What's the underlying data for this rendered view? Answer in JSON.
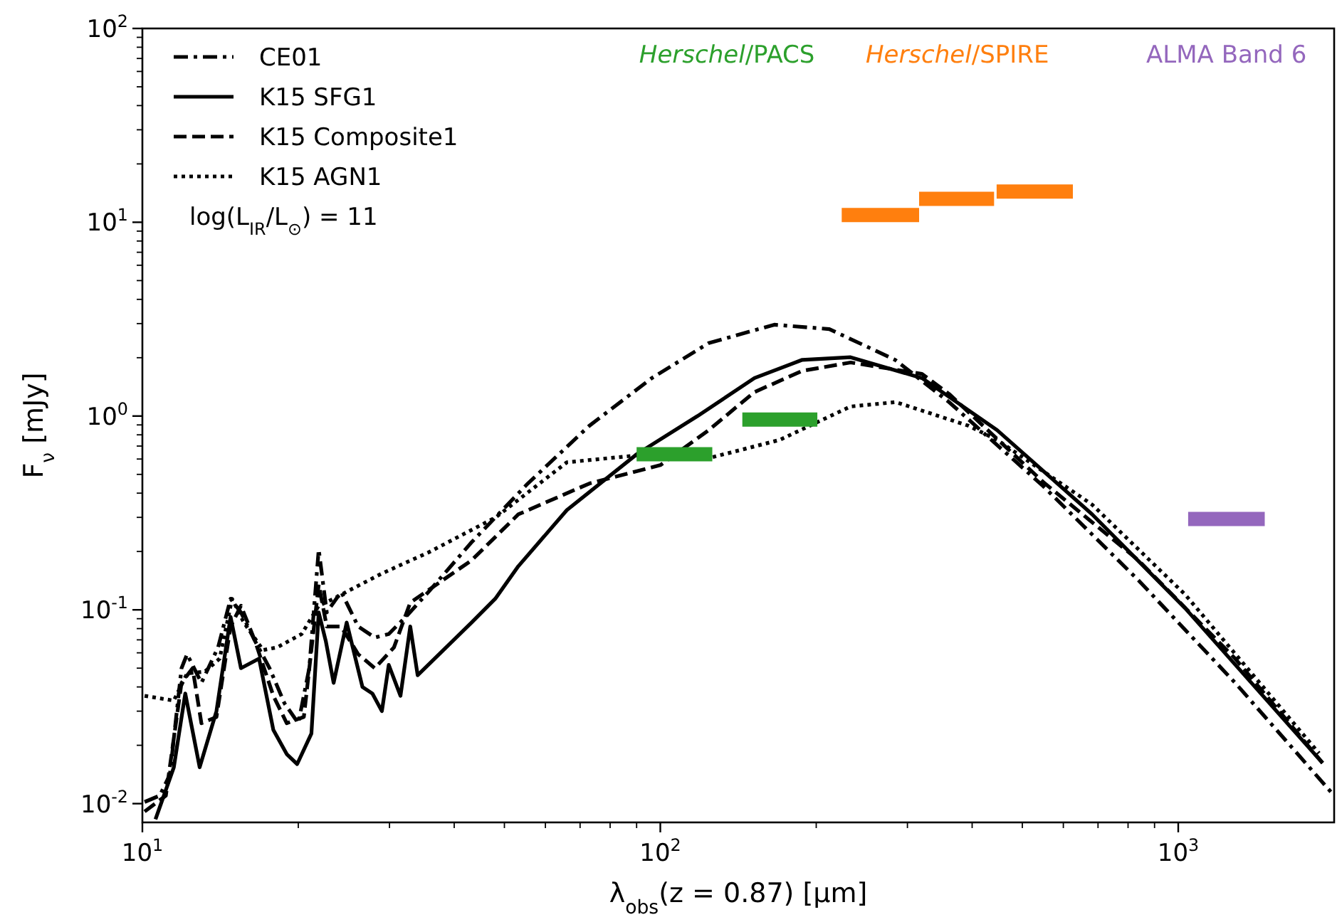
{
  "chart_data": {
    "type": "line",
    "xlabel": "λ$_{obs}$(z = 0.87) [μm]",
    "ylabel": "F$_{ν}$ [mJy]",
    "log": "xy",
    "legend": "top left",
    "grid": false,
    "xlim": [
      10,
      2000
    ],
    "ylim": [
      0.008,
      100
    ],
    "xticks": [
      {
        "value": 10,
        "label": "10$^{1}$"
      },
      {
        "value": 20,
        "label": null
      },
      {
        "value": 30,
        "label": null
      },
      {
        "value": 40,
        "label": null
      },
      {
        "value": 50,
        "label": null
      },
      {
        "value": 60,
        "label": null
      },
      {
        "value": 70,
        "label": null
      },
      {
        "value": 80,
        "label": null
      },
      {
        "value": 90,
        "label": null
      },
      {
        "value": 100,
        "label": "10$^{2}$"
      },
      {
        "value": 200,
        "label": null
      },
      {
        "value": 300,
        "label": null
      },
      {
        "value": 400,
        "label": null
      },
      {
        "value": 500,
        "label": null
      },
      {
        "value": 600,
        "label": null
      },
      {
        "value": 700,
        "label": null
      },
      {
        "value": 800,
        "label": null
      },
      {
        "value": 900,
        "label": null
      },
      {
        "value": 1000,
        "label": "10$^{3}$"
      }
    ],
    "yticks": [
      {
        "value": 0.01,
        "label": "10$^{-2}$"
      },
      {
        "value": 0.02,
        "label": null
      },
      {
        "value": 0.03,
        "label": null
      },
      {
        "value": 0.04,
        "label": null
      },
      {
        "value": 0.05,
        "label": null
      },
      {
        "value": 0.06,
        "label": null
      },
      {
        "value": 0.07,
        "label": null
      },
      {
        "value": 0.08,
        "label": null
      },
      {
        "value": 0.09,
        "label": null
      },
      {
        "value": 0.1,
        "label": "10$^{-1}$"
      },
      {
        "value": 0.2,
        "label": null
      },
      {
        "value": 0.3,
        "label": null
      },
      {
        "value": 0.4,
        "label": null
      },
      {
        "value": 0.5,
        "label": null
      },
      {
        "value": 0.6,
        "label": null
      },
      {
        "value": 0.7,
        "label": null
      },
      {
        "value": 0.8,
        "label": null
      },
      {
        "value": 0.9,
        "label": null
      },
      {
        "value": 1,
        "label": "10$^{0}$"
      },
      {
        "value": 2,
        "label": null
      },
      {
        "value": 3,
        "label": null
      },
      {
        "value": 4,
        "label": null
      },
      {
        "value": 5,
        "label": null
      },
      {
        "value": 6,
        "label": null
      },
      {
        "value": 7,
        "label": null
      },
      {
        "value": 8,
        "label": null
      },
      {
        "value": 9,
        "label": null
      },
      {
        "value": 10,
        "label": "10$^{1}$"
      },
      {
        "value": 20,
        "label": null
      },
      {
        "value": 30,
        "label": null
      },
      {
        "value": 40,
        "label": null
      },
      {
        "value": 50,
        "label": null
      },
      {
        "value": 60,
        "label": null
      },
      {
        "value": 70,
        "label": null
      },
      {
        "value": 80,
        "label": null
      },
      {
        "value": 90,
        "label": null
      },
      {
        "value": 100,
        "label": "10$^{2}$"
      }
    ],
    "annotations": [
      "log(L$_{IR}$/L$_{⊙}$) = 11"
    ],
    "series": [
      {
        "name": "CE01",
        "color": "#000000",
        "line_style": "dashdot",
        "x": [
          10.1,
          10.8,
          11.3,
          11.9,
          12.2,
          13.0,
          14.0,
          14.8,
          15.5,
          16.5,
          17.6,
          18.8,
          20.0,
          21.0,
          21.9,
          22.7,
          24.2,
          26.1,
          28.1,
          29.9,
          32.5,
          35.7,
          43.2,
          55.5,
          72.9,
          96.3,
          124,
          166,
          212,
          284,
          361,
          549,
          838,
          1288,
          2000
        ],
        "values": [
          0.0102,
          0.011,
          0.0141,
          0.05,
          0.059,
          0.042,
          0.064,
          0.114,
          0.097,
          0.069,
          0.05,
          0.033,
          0.026,
          0.05,
          0.205,
          0.097,
          0.124,
          0.082,
          0.072,
          0.075,
          0.094,
          0.124,
          0.223,
          0.449,
          0.89,
          1.57,
          2.38,
          2.96,
          2.81,
          1.95,
          1.18,
          0.434,
          0.142,
          0.042,
          0.011
        ]
      },
      {
        "name": "K15 SFG1",
        "color": "#000000",
        "line_style": "solid",
        "x": [
          10.6,
          11.5,
          12.1,
          12.9,
          13.9,
          14.8,
          15.5,
          16.8,
          17.9,
          19.0,
          19.9,
          21.2,
          21.9,
          22.6,
          23.4,
          24.8,
          26.6,
          27.8,
          29.0,
          29.9,
          31.5,
          32.9,
          34.0,
          43.2,
          48.0,
          53.2,
          66.0,
          90.2,
          118,
          152,
          188,
          233,
          320,
          447,
          682,
          1031,
          1900
        ],
        "values": [
          0.0083,
          0.0154,
          0.037,
          0.0154,
          0.03,
          0.092,
          0.05,
          0.056,
          0.024,
          0.018,
          0.016,
          0.023,
          0.097,
          0.069,
          0.042,
          0.086,
          0.04,
          0.037,
          0.03,
          0.052,
          0.036,
          0.082,
          0.046,
          0.086,
          0.114,
          0.168,
          0.327,
          0.637,
          1.0,
          1.57,
          1.95,
          2.01,
          1.57,
          0.846,
          0.311,
          0.102,
          0.0162
        ]
      },
      {
        "name": "K15 Composite1",
        "color": "#000000",
        "line_style": "dashed",
        "x": [
          10.1,
          11.1,
          11.9,
          12.5,
          13.0,
          13.9,
          14.8,
          15.5,
          16.5,
          17.9,
          19.0,
          20.5,
          21.9,
          22.7,
          24.2,
          26.1,
          28.1,
          30.6,
          32.9,
          43.2,
          53.2,
          73.0,
          100,
          124,
          152,
          188,
          233,
          320,
          361,
          549,
          838,
          1288,
          1900
        ],
        "values": [
          0.0091,
          0.011,
          0.042,
          0.05,
          0.026,
          0.028,
          0.082,
          0.105,
          0.069,
          0.036,
          0.026,
          0.028,
          0.135,
          0.082,
          0.082,
          0.059,
          0.05,
          0.064,
          0.109,
          0.18,
          0.311,
          0.449,
          0.558,
          0.846,
          1.33,
          1.71,
          1.89,
          1.65,
          1.3,
          0.456,
          0.18,
          0.056,
          0.0162
        ]
      },
      {
        "name": "K15 AGN1",
        "color": "#000000",
        "line_style": "dotted",
        "x": [
          10.1,
          11.5,
          12.2,
          13.2,
          14.1,
          14.9,
          15.7,
          17.1,
          18.2,
          20.3,
          21.9,
          23.4,
          24.8,
          29.0,
          35.7,
          48.1,
          66.0,
          90.2,
          124,
          170,
          233,
          285,
          394,
          447,
          682,
          1031,
          1870
        ],
        "values": [
          0.036,
          0.034,
          0.047,
          0.048,
          0.056,
          0.114,
          0.086,
          0.062,
          0.064,
          0.075,
          0.105,
          0.114,
          0.124,
          0.154,
          0.198,
          0.3,
          0.577,
          0.627,
          0.606,
          0.753,
          1.12,
          1.18,
          0.89,
          0.753,
          0.349,
          0.12,
          0.0182
        ]
      },
      {
        "name": "Herschel/PACS",
        "color": "#2ca02c",
        "x": [
          90,
          126,
          null,
          144,
          201
        ],
        "values": [
          0.635,
          0.635,
          null,
          0.96,
          0.96
        ]
      },
      {
        "name": "Herschel/SPIRE",
        "color": "#ff7f0e",
        "x": [
          224,
          316,
          null,
          316,
          441,
          null,
          446,
          626
        ],
        "values": [
          10.9,
          10.9,
          null,
          13.2,
          13.2,
          null,
          14.4,
          14.4
        ]
      },
      {
        "name": "ALMA Band 6",
        "color": "#9467bd",
        "x": [
          1045,
          1469
        ],
        "values": [
          0.294,
          0.294
        ]
      }
    ]
  }
}
